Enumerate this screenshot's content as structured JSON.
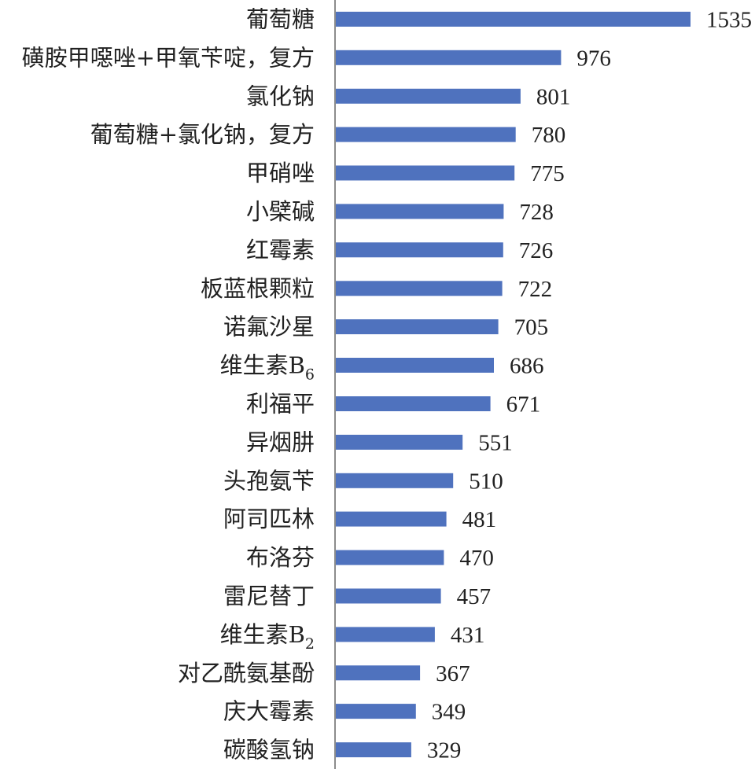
{
  "chart_data": {
    "type": "bar",
    "orientation": "horizontal",
    "title": "",
    "xlabel": "",
    "ylabel": "",
    "categories": [
      {
        "text": "葡萄糖",
        "sub": ""
      },
      {
        "text": "磺胺甲噁唑+甲氧苄啶，复方",
        "sub": ""
      },
      {
        "text": "氯化钠",
        "sub": ""
      },
      {
        "text": "葡萄糖+氯化钠，复方",
        "sub": ""
      },
      {
        "text": "甲硝唑",
        "sub": ""
      },
      {
        "text": "小檗碱",
        "sub": ""
      },
      {
        "text": "红霉素",
        "sub": ""
      },
      {
        "text": "板蓝根颗粒",
        "sub": ""
      },
      {
        "text": "诺氟沙星",
        "sub": ""
      },
      {
        "text": "维生素B",
        "sub": "6"
      },
      {
        "text": "利福平",
        "sub": ""
      },
      {
        "text": "异烟肼",
        "sub": ""
      },
      {
        "text": "头孢氨苄",
        "sub": ""
      },
      {
        "text": "阿司匹林",
        "sub": ""
      },
      {
        "text": "布洛芬",
        "sub": ""
      },
      {
        "text": "雷尼替丁",
        "sub": ""
      },
      {
        "text": "维生素B",
        "sub": "2"
      },
      {
        "text": "对乙酰氨基酚",
        "sub": ""
      },
      {
        "text": "庆大霉素",
        "sub": ""
      },
      {
        "text": "碳酸氢钠",
        "sub": ""
      }
    ],
    "values": [
      1535,
      976,
      801,
      780,
      775,
      728,
      726,
      722,
      705,
      686,
      671,
      551,
      510,
      481,
      470,
      457,
      431,
      367,
      349,
      329
    ],
    "xlim": [
      0,
      1700
    ],
    "data_labels": true,
    "grid": false,
    "legend": "none",
    "bar_color": "#4f72be",
    "axis_color": "#8c8c8c"
  }
}
